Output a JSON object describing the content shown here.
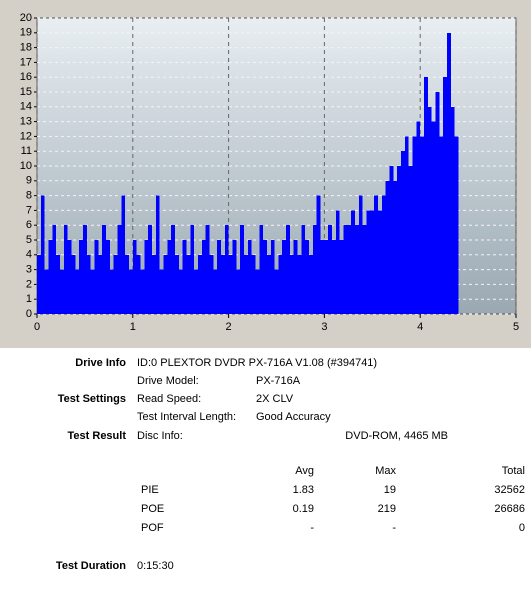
{
  "chart_data": {
    "type": "bar",
    "x": [
      0,
      0.04,
      0.08,
      0.12,
      0.16,
      0.2,
      0.24,
      0.28,
      0.32,
      0.36,
      0.4,
      0.44,
      0.48,
      0.52,
      0.56,
      0.6,
      0.64,
      0.68,
      0.72,
      0.76,
      0.8,
      0.84,
      0.88,
      0.92,
      0.96,
      1.0,
      1.04,
      1.08,
      1.12,
      1.16,
      1.2,
      1.24,
      1.28,
      1.32,
      1.36,
      1.4,
      1.44,
      1.48,
      1.52,
      1.56,
      1.6,
      1.64,
      1.68,
      1.72,
      1.76,
      1.8,
      1.84,
      1.88,
      1.92,
      1.96,
      2.0,
      2.04,
      2.08,
      2.12,
      2.16,
      2.2,
      2.24,
      2.28,
      2.32,
      2.36,
      2.4,
      2.44,
      2.48,
      2.52,
      2.56,
      2.6,
      2.64,
      2.68,
      2.72,
      2.76,
      2.8,
      2.84,
      2.88,
      2.92,
      2.96,
      3.0,
      3.04,
      3.08,
      3.12,
      3.16,
      3.2,
      3.24,
      3.28,
      3.32,
      3.36,
      3.4,
      3.44,
      3.48,
      3.52,
      3.56,
      3.6,
      3.64,
      3.68,
      3.72,
      3.76,
      3.8,
      3.84,
      3.88,
      3.92,
      3.96,
      4.0,
      4.04,
      4.08,
      4.12,
      4.16,
      4.2,
      4.24,
      4.28,
      4.32,
      4.36
    ],
    "values": [
      4,
      8,
      3,
      5,
      6,
      4,
      3,
      6,
      5,
      4,
      3,
      5,
      6,
      4,
      3,
      5,
      4,
      6,
      5,
      3,
      4,
      6,
      8,
      4,
      3,
      5,
      4,
      3,
      5,
      6,
      4,
      8,
      3,
      4,
      5,
      6,
      4,
      3,
      5,
      4,
      6,
      3,
      4,
      5,
      6,
      4,
      3,
      5,
      4,
      6,
      4,
      5,
      3,
      6,
      4,
      5,
      4,
      3,
      6,
      5,
      4,
      5,
      3,
      4,
      5,
      6,
      4,
      5,
      4,
      6,
      5,
      4,
      6,
      8,
      5,
      5,
      6,
      5,
      7,
      5,
      6,
      6,
      7,
      6,
      8,
      6,
      7,
      7,
      8,
      7,
      8,
      9,
      10,
      9,
      10,
      11,
      12,
      10,
      12,
      13,
      12,
      16,
      14,
      13,
      15,
      12,
      16,
      19,
      14,
      12
    ],
    "color": "#0000ff",
    "xlim": [
      0,
      5
    ],
    "xticks": [
      0,
      1,
      2,
      3,
      4,
      5
    ],
    "ylim": [
      0,
      20
    ],
    "yticks": [
      0,
      1,
      2,
      3,
      4,
      5,
      6,
      7,
      8,
      9,
      10,
      11,
      12,
      13,
      14,
      15,
      16,
      17,
      18,
      19,
      20
    ],
    "grid": true
  },
  "report": {
    "drive_info": {
      "label": "Drive Info",
      "value": "ID:0 PLEXTOR DVDR PX-716A V1.08 (#394741)"
    },
    "drive_model": {
      "label": "Drive Model:",
      "value": "PX-716A"
    },
    "test_settings": {
      "label": "Test Settings"
    },
    "read_speed": {
      "label": "Read Speed:",
      "value": "2X CLV"
    },
    "interval": {
      "label": "Test Interval Length:",
      "value": "Good Accuracy"
    },
    "test_result": {
      "label": "Test Result"
    },
    "disc_info": {
      "label": "Disc Info:",
      "value": "DVD-ROM, 4465 MB"
    },
    "stats": {
      "header": [
        "Avg",
        "Max",
        "Total"
      ],
      "rows": [
        [
          "PIE",
          1.83,
          19,
          32562
        ],
        [
          "POE",
          0.19,
          219,
          26686
        ],
        [
          "POF",
          "-",
          "-",
          0
        ]
      ]
    },
    "duration": {
      "label": "Test Duration",
      "value": "0:15:30"
    }
  }
}
